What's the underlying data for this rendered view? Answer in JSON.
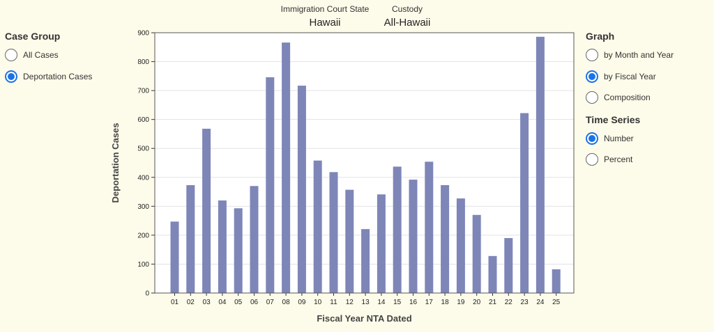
{
  "filters": [
    {
      "label": "Immigration Court State",
      "value": "Hawaii"
    },
    {
      "label": "Custody",
      "value": "All-Hawaii"
    }
  ],
  "case_group": {
    "title": "Case Group",
    "options": [
      {
        "label": "All Cases",
        "checked": false
      },
      {
        "label": "Deportation Cases",
        "checked": true
      }
    ]
  },
  "graph": {
    "title": "Graph",
    "options": [
      {
        "label": "by Month and Year",
        "checked": false
      },
      {
        "label": "by Fiscal Year",
        "checked": true
      },
      {
        "label": "Composition",
        "checked": false
      }
    ]
  },
  "time_series": {
    "title": "Time Series",
    "options": [
      {
        "label": "Number",
        "checked": true
      },
      {
        "label": "Percent",
        "checked": false
      }
    ]
  },
  "colors": {
    "bar": "#7e86b8",
    "radio_selected": "#1a73e8",
    "background": "#fdfbe9"
  },
  "chart_data": {
    "type": "bar",
    "categories": [
      "01",
      "02",
      "03",
      "04",
      "05",
      "06",
      "07",
      "08",
      "09",
      "10",
      "11",
      "12",
      "13",
      "14",
      "15",
      "16",
      "17",
      "18",
      "19",
      "20",
      "21",
      "22",
      "23",
      "24",
      "25"
    ],
    "values": [
      247,
      373,
      568,
      320,
      293,
      370,
      746,
      866,
      717,
      458,
      418,
      357,
      221,
      341,
      437,
      392,
      454,
      373,
      327,
      270,
      128,
      190,
      622,
      886,
      82
    ],
    "xlabel": "Fiscal Year NTA Dated",
    "ylabel": "Deportation Cases",
    "ylim": [
      0,
      900
    ],
    "yticks": [
      0,
      100,
      200,
      300,
      400,
      500,
      600,
      700,
      800,
      900
    ],
    "grid": true
  }
}
